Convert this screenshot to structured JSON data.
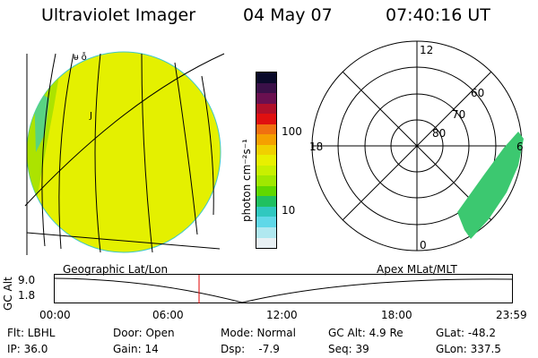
{
  "header": {
    "title": "Ultraviolet Imager",
    "date": "04 May 07",
    "time": "07:40:16 UT"
  },
  "colorbar": {
    "unit_label": "photon cm⁻²s⁻¹",
    "ticks": [
      "100",
      "10"
    ],
    "colors": [
      "#0a0a2a",
      "#3a1048",
      "#6a1050",
      "#b0102a",
      "#e01010",
      "#f07010",
      "#f5a000",
      "#f0d000",
      "#e8f000",
      "#c8f000",
      "#a0e800",
      "#60d800",
      "#20c060",
      "#30c8c0",
      "#60d8e8",
      "#b0e8f0",
      "#e8f0f4"
    ]
  },
  "labels": {
    "geo": "Geographic Lat/Lon",
    "apex": "Apex MLat/MLT"
  },
  "polar": {
    "mlt": [
      "12",
      "18",
      "6",
      "0"
    ],
    "mlat": [
      "60",
      "70",
      "80"
    ]
  },
  "orbit": {
    "ylabel": "GC Alt",
    "yticks": [
      "9.0",
      "1.8"
    ],
    "xticks": [
      "00:00",
      "06:00",
      "12:00",
      "18:00",
      "23:59"
    ]
  },
  "info": {
    "filter": "Flt: LBHL",
    "ip": "IP: 36.0",
    "door": "Door: Open",
    "gain": "Gain: 14",
    "mode": "Mode: Normal",
    "dsp": "Dsp:    -7.9",
    "gcalt": "GC Alt: 4.9 Re",
    "seq": "Seq: 39",
    "glat": "GLat: -48.2",
    "glon": "GLon: 337.5"
  },
  "colors": {
    "image_fill": "#e4f000",
    "aurora": "#3cc870",
    "marker": "#e00000"
  }
}
